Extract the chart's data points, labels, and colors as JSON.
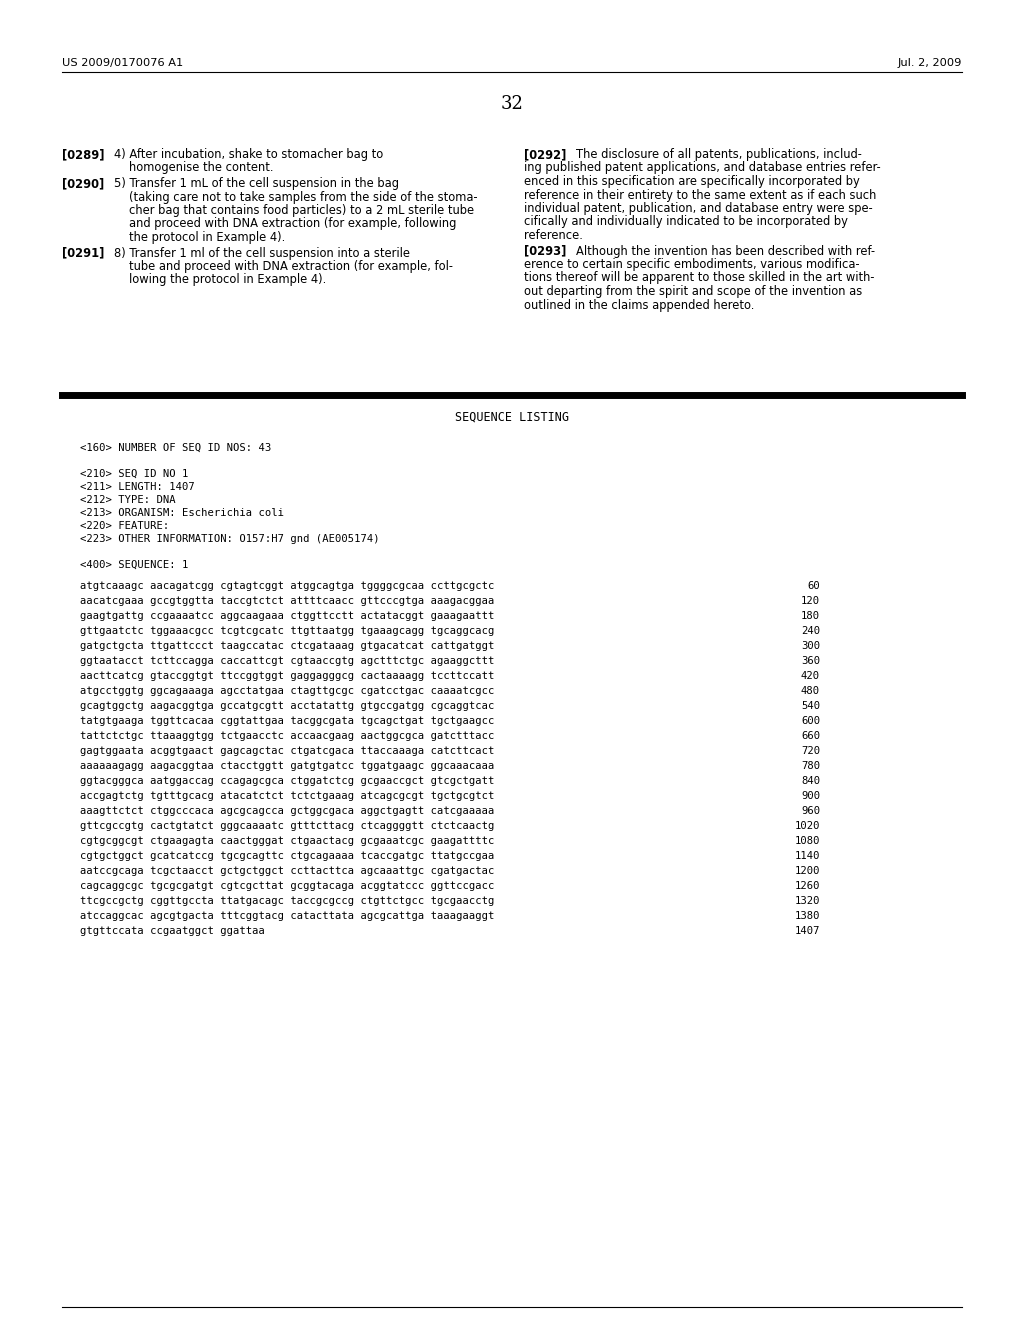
{
  "header_left": "US 2009/0170076 A1",
  "header_right": "Jul. 2, 2009",
  "page_number": "32",
  "seq_title": "SEQUENCE LISTING",
  "seq_header": [
    "<160> NUMBER OF SEQ ID NOS: 43",
    "",
    "<210> SEQ ID NO 1",
    "<211> LENGTH: 1407",
    "<212> TYPE: DNA",
    "<213> ORGANISM: Escherichia coli",
    "<220> FEATURE:",
    "<223> OTHER INFORMATION: O157:H7 gnd (AE005174)",
    "",
    "<400> SEQUENCE: 1"
  ],
  "sequence_lines": [
    [
      "atgtcaaagc aacagatcgg cgtagtcggt atggcagtga tggggcgcaa ccttgcgctc",
      "60"
    ],
    [
      "aacatcgaaa gccgtggtta taccgtctct attttcaacc gttcccgtga aaagacggaa",
      "120"
    ],
    [
      "gaagtgattg ccgaaaatcc aggcaagaaa ctggttcctt actatacggt gaaagaattt",
      "180"
    ],
    [
      "gttgaatctc tggaaacgcc tcgtcgcatc ttgttaatgg tgaaagcagg tgcaggcacg",
      "240"
    ],
    [
      "gatgctgcta ttgattccct taagccatac ctcgataaag gtgacatcat cattgatggt",
      "300"
    ],
    [
      "ggtaatacct tcttccagga caccattcgt cgtaaccgtg agctttctgc agaaggcttt",
      "360"
    ],
    [
      "aacttcatcg gtaccggtgt ttccggtggt gaggagggcg cactaaaagg tccttccatt",
      "420"
    ],
    [
      "atgcctggtg ggcagaaaga agcctatgaa ctagttgcgc cgatcctgac caaaatcgcc",
      "480"
    ],
    [
      "gcagtggctg aagacggtga gccatgcgtt acctatattg gtgccgatgg cgcaggtcac",
      "540"
    ],
    [
      "tatgtgaaga tggttcacaa cggtattgaa tacggcgata tgcagctgat tgctgaagcc",
      "600"
    ],
    [
      "tattctctgc ttaaaggtgg tctgaacctc accaacgaag aactggcgca gatctttacc",
      "660"
    ],
    [
      "gagtggaata acggtgaact gagcagctac ctgatcgaca ttaccaaaga catcttcact",
      "720"
    ],
    [
      "aaaaaagagg aagacggtaa ctacctggtt gatgtgatcc tggatgaagc ggcaaacaaa",
      "780"
    ],
    [
      "ggtacgggca aatggaccag ccagagcgca ctggatctcg gcgaaccgct gtcgctgatt",
      "840"
    ],
    [
      "accgagtctg tgtttgcacg atacatctct tctctgaaag atcagcgcgt tgctgcgtct",
      "900"
    ],
    [
      "aaagttctct ctggcccaca agcgcagcca gctggcgaca aggctgagtt catcgaaaaa",
      "960"
    ],
    [
      "gttcgccgtg cactgtatct gggcaaaatc gtttcttacg ctcaggggtt ctctcaactg",
      "1020"
    ],
    [
      "cgtgcggcgt ctgaagagta caactgggat ctgaactacg gcgaaatcgc gaagattttc",
      "1080"
    ],
    [
      "cgtgctggct gcatcatccg tgcgcagttc ctgcagaaaa tcaccgatgc ttatgccgaa",
      "1140"
    ],
    [
      "aatccgcaga tcgctaacct gctgctggct ccttacttca agcaaattgc cgatgactac",
      "1200"
    ],
    [
      "cagcaggcgc tgcgcgatgt cgtcgcttat gcggtacaga acggtatccc ggttccgacc",
      "1260"
    ],
    [
      "ttcgccgctg cggttgccta ttatgacagc taccgcgccg ctgttctgcc tgcgaacctg",
      "1320"
    ],
    [
      "atccaggcac agcgtgacta tttcggtacg catacttata agcgcattga taaagaaggt",
      "1380"
    ],
    [
      "gtgttccata ccgaatggct ggattaa",
      "1407"
    ]
  ],
  "bg_color": "#ffffff"
}
